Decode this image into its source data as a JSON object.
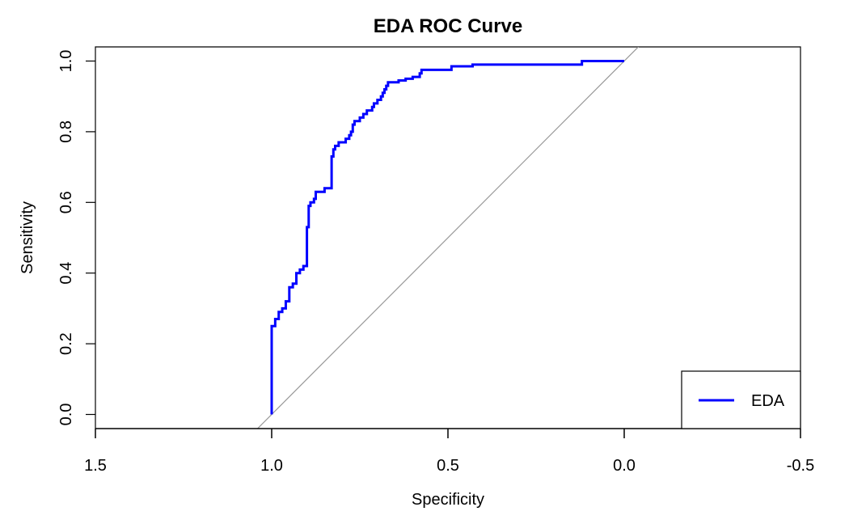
{
  "chart_data": {
    "type": "line",
    "title": "EDA ROC Curve",
    "xlabel": "Specificity",
    "ylabel": "Sensitivity",
    "xlim": [
      1.5,
      -0.5
    ],
    "ylim": [
      -0.04,
      1.04
    ],
    "x_reversed": true,
    "x_ticks": [
      1.5,
      1.0,
      0.5,
      0.0,
      -0.5
    ],
    "x_tick_labels": [
      "1.5",
      "1.0",
      "0.5",
      "0.0",
      "-0.5"
    ],
    "y_ticks": [
      0.0,
      0.2,
      0.4,
      0.6,
      0.8,
      1.0
    ],
    "y_tick_labels": [
      "0.0",
      "0.2",
      "0.4",
      "0.6",
      "0.8",
      "1.0"
    ],
    "grid": false,
    "legend_position": "bottom-right",
    "reference_line": {
      "from": [
        1.0,
        0.0
      ],
      "to": [
        0.0,
        1.0
      ],
      "color": "#999999"
    },
    "series": [
      {
        "name": "EDA",
        "color": "#0000ff",
        "points": [
          [
            1.0,
            0.0
          ],
          [
            1.0,
            0.25
          ],
          [
            0.99,
            0.25
          ],
          [
            0.99,
            0.27
          ],
          [
            0.98,
            0.27
          ],
          [
            0.98,
            0.29
          ],
          [
            0.97,
            0.29
          ],
          [
            0.97,
            0.3
          ],
          [
            0.96,
            0.3
          ],
          [
            0.96,
            0.32
          ],
          [
            0.95,
            0.32
          ],
          [
            0.95,
            0.36
          ],
          [
            0.94,
            0.36
          ],
          [
            0.94,
            0.37
          ],
          [
            0.93,
            0.37
          ],
          [
            0.93,
            0.4
          ],
          [
            0.92,
            0.4
          ],
          [
            0.92,
            0.41
          ],
          [
            0.91,
            0.41
          ],
          [
            0.91,
            0.42
          ],
          [
            0.9,
            0.42
          ],
          [
            0.9,
            0.53
          ],
          [
            0.895,
            0.53
          ],
          [
            0.895,
            0.59
          ],
          [
            0.89,
            0.59
          ],
          [
            0.89,
            0.6
          ],
          [
            0.88,
            0.6
          ],
          [
            0.88,
            0.61
          ],
          [
            0.875,
            0.61
          ],
          [
            0.875,
            0.63
          ],
          [
            0.85,
            0.63
          ],
          [
            0.85,
            0.64
          ],
          [
            0.83,
            0.64
          ],
          [
            0.83,
            0.73
          ],
          [
            0.825,
            0.73
          ],
          [
            0.825,
            0.75
          ],
          [
            0.82,
            0.75
          ],
          [
            0.82,
            0.76
          ],
          [
            0.81,
            0.76
          ],
          [
            0.81,
            0.77
          ],
          [
            0.79,
            0.77
          ],
          [
            0.79,
            0.78
          ],
          [
            0.78,
            0.78
          ],
          [
            0.78,
            0.79
          ],
          [
            0.775,
            0.79
          ],
          [
            0.775,
            0.8
          ],
          [
            0.77,
            0.8
          ],
          [
            0.77,
            0.82
          ],
          [
            0.765,
            0.82
          ],
          [
            0.765,
            0.83
          ],
          [
            0.75,
            0.83
          ],
          [
            0.75,
            0.84
          ],
          [
            0.74,
            0.84
          ],
          [
            0.74,
            0.85
          ],
          [
            0.73,
            0.85
          ],
          [
            0.73,
            0.86
          ],
          [
            0.715,
            0.86
          ],
          [
            0.715,
            0.87
          ],
          [
            0.71,
            0.87
          ],
          [
            0.71,
            0.88
          ],
          [
            0.7,
            0.88
          ],
          [
            0.7,
            0.89
          ],
          [
            0.69,
            0.89
          ],
          [
            0.69,
            0.9
          ],
          [
            0.685,
            0.9
          ],
          [
            0.685,
            0.91
          ],
          [
            0.68,
            0.91
          ],
          [
            0.68,
            0.92
          ],
          [
            0.675,
            0.92
          ],
          [
            0.675,
            0.93
          ],
          [
            0.67,
            0.93
          ],
          [
            0.67,
            0.94
          ],
          [
            0.64,
            0.94
          ],
          [
            0.64,
            0.945
          ],
          [
            0.62,
            0.945
          ],
          [
            0.62,
            0.95
          ],
          [
            0.6,
            0.95
          ],
          [
            0.6,
            0.955
          ],
          [
            0.58,
            0.955
          ],
          [
            0.58,
            0.965
          ],
          [
            0.575,
            0.965
          ],
          [
            0.575,
            0.975
          ],
          [
            0.49,
            0.975
          ],
          [
            0.49,
            0.985
          ],
          [
            0.43,
            0.985
          ],
          [
            0.43,
            0.99
          ],
          [
            0.12,
            0.99
          ],
          [
            0.12,
            1.0
          ],
          [
            0.0,
            1.0
          ]
        ]
      }
    ]
  }
}
